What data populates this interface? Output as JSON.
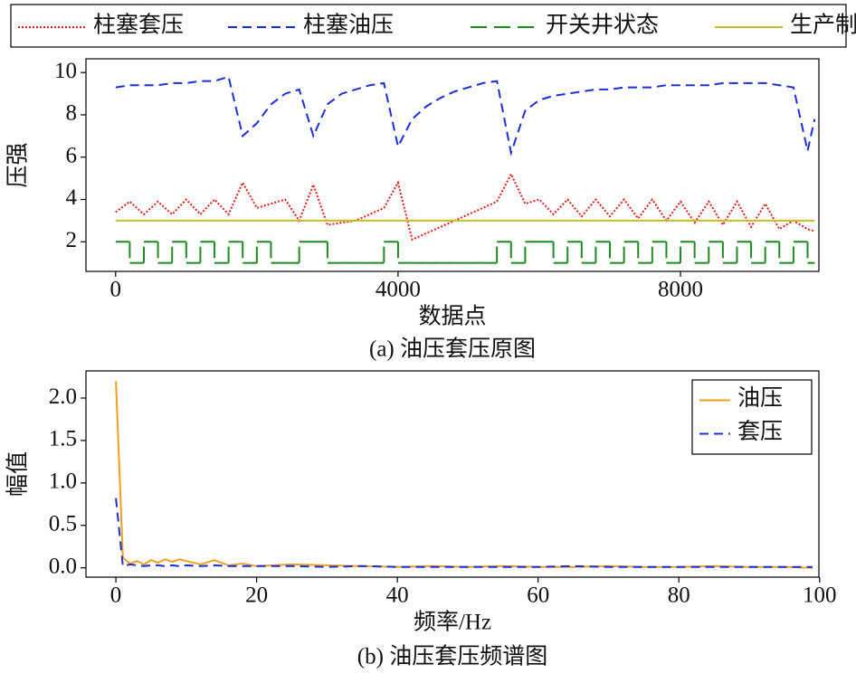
{
  "chart_data": [
    {
      "type": "line",
      "caption": "(a) 油压套压原图",
      "xlabel": "数据点",
      "ylabel": "压强",
      "legend": "top-outside",
      "xlim": [
        -420,
        9960
      ],
      "ylim": [
        0.6,
        10.65
      ],
      "xticks": [
        0,
        4000,
        8000
      ],
      "yticks": [
        2,
        4,
        6,
        8,
        10
      ],
      "x": [
        0,
        200,
        400,
        600,
        800,
        1000,
        1200,
        1400,
        1600,
        1800,
        2000,
        2200,
        2400,
        2600,
        2800,
        3000,
        3200,
        3400,
        3600,
        3800,
        4000,
        4200,
        4400,
        4600,
        4800,
        5000,
        5200,
        5400,
        5600,
        5800,
        6000,
        6200,
        6400,
        6600,
        6800,
        7000,
        7200,
        7400,
        7600,
        7800,
        8000,
        8200,
        8400,
        8600,
        8800,
        9000,
        9200,
        9400,
        9600,
        9800,
        9900
      ],
      "series": [
        {
          "name": "柱塞套压",
          "color": "#e0201b",
          "dash": "dotted",
          "values": [
            3.4,
            3.9,
            3.3,
            3.9,
            3.3,
            4.0,
            3.3,
            4.0,
            3.3,
            4.8,
            3.6,
            3.8,
            4.0,
            3.0,
            4.7,
            2.8,
            2.9,
            3.0,
            3.3,
            3.6,
            4.8,
            2.1,
            2.4,
            2.7,
            3.0,
            3.3,
            3.6,
            3.9,
            5.2,
            3.8,
            4.0,
            3.3,
            4.0,
            3.2,
            4.0,
            3.2,
            4.0,
            3.1,
            4.0,
            3.0,
            3.9,
            2.9,
            3.9,
            2.8,
            3.9,
            2.7,
            3.8,
            2.6,
            3.0,
            2.6,
            2.5
          ]
        },
        {
          "name": "柱塞油压",
          "color": "#1c2fd6",
          "dash": "dashed",
          "values": [
            9.3,
            9.4,
            9.4,
            9.4,
            9.5,
            9.5,
            9.6,
            9.6,
            9.8,
            7.0,
            7.6,
            8.5,
            9.0,
            9.2,
            7.0,
            8.5,
            9.0,
            9.2,
            9.4,
            9.5,
            6.5,
            7.8,
            8.4,
            8.8,
            9.1,
            9.3,
            9.5,
            9.6,
            6.2,
            8.2,
            8.7,
            8.9,
            9.0,
            9.1,
            9.2,
            9.2,
            9.3,
            9.3,
            9.3,
            9.4,
            9.4,
            9.4,
            9.4,
            9.5,
            9.5,
            9.5,
            9.5,
            9.4,
            9.3,
            6.3,
            7.8
          ]
        },
        {
          "name": "开关井状态",
          "color": "#1f8a1f",
          "dash": "longdash",
          "step": true,
          "values": [
            2,
            1,
            2,
            1,
            2,
            1,
            2,
            1,
            2,
            1,
            2,
            1,
            1,
            2,
            2,
            1,
            1,
            1,
            1,
            2,
            1,
            1,
            1,
            1,
            1,
            1,
            1,
            2,
            1,
            2,
            2,
            1,
            2,
            1,
            2,
            1,
            2,
            1,
            2,
            1,
            2,
            1,
            2,
            1,
            2,
            1,
            2,
            1,
            2,
            1,
            1
          ]
        },
        {
          "name": "生产制度",
          "color": "#c8be1e",
          "dash": "solid",
          "values": [
            3,
            3,
            3,
            3,
            3,
            3,
            3,
            3,
            3,
            3,
            3,
            3,
            3,
            3,
            3,
            3,
            3,
            3,
            3,
            3,
            3,
            3,
            3,
            3,
            3,
            3,
            3,
            3,
            3,
            3,
            3,
            3,
            3,
            3,
            3,
            3,
            3,
            3,
            3,
            3,
            3,
            3,
            3,
            3,
            3,
            3,
            3,
            3,
            3,
            3,
            3
          ]
        }
      ]
    },
    {
      "type": "line",
      "caption": "(b) 油压套压频谱图",
      "xlabel": "频率/Hz",
      "ylabel": "幅值",
      "legend": "upper right",
      "xlim": [
        -4.25,
        99.9
      ],
      "ylim": [
        -0.11,
        2.32
      ],
      "xticks": [
        0,
        20,
        40,
        60,
        80,
        100
      ],
      "yticks": [
        {
          "value": 0,
          "label": "0.0"
        },
        {
          "value": 0.5,
          "label": "0.5"
        },
        {
          "value": 1,
          "label": "1.0"
        },
        {
          "value": 1.5,
          "label": "1.5"
        },
        {
          "value": 2,
          "label": "2.0"
        }
      ],
      "x": [
        0,
        1,
        2,
        3,
        4,
        5,
        6,
        7,
        8,
        9,
        10,
        12,
        14,
        16,
        18,
        20,
        25,
        30,
        35,
        40,
        45,
        50,
        55,
        60,
        65,
        70,
        75,
        80,
        85,
        90,
        95,
        99
      ],
      "series": [
        {
          "name": "油压",
          "color": "#f0a020",
          "dash": "solid",
          "values": [
            2.2,
            0.12,
            0.05,
            0.08,
            0.04,
            0.09,
            0.06,
            0.1,
            0.07,
            0.1,
            0.08,
            0.04,
            0.09,
            0.03,
            0.05,
            0.02,
            0.04,
            0.03,
            0.02,
            0.01,
            0.02,
            0.01,
            0.02,
            0.01,
            0.01,
            0.02,
            0.01,
            0.01,
            0.02,
            0.01,
            0.01,
            0.0
          ]
        },
        {
          "name": "套压",
          "color": "#1c2fd6",
          "dash": "dashed",
          "values": [
            0.82,
            0.02,
            0.04,
            0.03,
            0.02,
            0.03,
            0.03,
            0.02,
            0.03,
            0.02,
            0.03,
            0.02,
            0.03,
            0.02,
            0.02,
            0.02,
            0.02,
            0.01,
            0.02,
            0.01,
            0.01,
            0.01,
            0.01,
            0.01,
            0.02,
            0.01,
            0.01,
            0.01,
            0.01,
            0.01,
            0.01,
            0.01
          ]
        }
      ]
    }
  ]
}
